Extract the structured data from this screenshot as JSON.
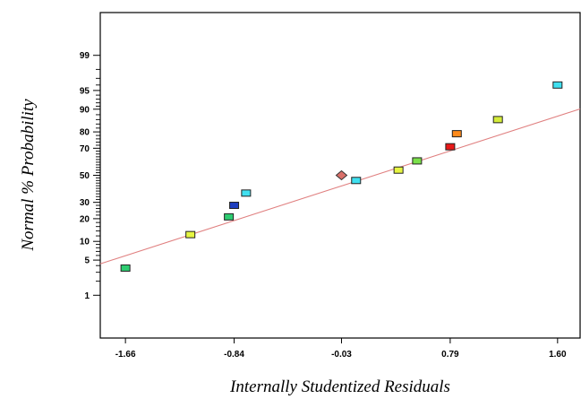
{
  "chart_data": {
    "type": "scatter",
    "title": "",
    "xlabel": "Internally Studentized Residuals",
    "ylabel": "Normal % Probability",
    "y_scale": "normal-probability",
    "grid": false,
    "legend": "none",
    "xlim": [
      -1.85,
      1.77
    ],
    "ylim": [
      0.08,
      99.92
    ],
    "x_ticks": [
      -1.66,
      -0.84,
      -0.03,
      0.79,
      1.6
    ],
    "x_tick_labels": [
      "-1.66",
      "-0.84",
      "-0.03",
      "0.79",
      "1.60"
    ],
    "y_ticks": [
      1,
      5,
      10,
      20,
      30,
      50,
      70,
      80,
      90,
      95,
      99
    ],
    "y_tick_labels": [
      "1",
      "5",
      "10",
      "20",
      "30",
      "50",
      "70",
      "80",
      "90",
      "95",
      "99"
    ],
    "reference_line": {
      "color": "#e08080",
      "points": [
        [
          -1.85,
          4.3
        ],
        [
          1.77,
          90.1
        ]
      ]
    },
    "points": [
      {
        "x": -1.66,
        "y": 3.6,
        "color": "#2ecc71",
        "shape": "square"
      },
      {
        "x": -1.17,
        "y": 12.5,
        "color": "#e6f542",
        "shape": "square"
      },
      {
        "x": -0.88,
        "y": 21.0,
        "color": "#2ecc71",
        "shape": "square"
      },
      {
        "x": -0.84,
        "y": 28.0,
        "color": "#1f3fbf",
        "shape": "square"
      },
      {
        "x": -0.75,
        "y": 36.5,
        "color": "#40e0f0",
        "shape": "square"
      },
      {
        "x": -0.03,
        "y": 50.0,
        "color": "#d9706a",
        "shape": "diamond"
      },
      {
        "x": 0.08,
        "y": 46.0,
        "color": "#40e0f0",
        "shape": "square"
      },
      {
        "x": 0.4,
        "y": 54.0,
        "color": "#e6f542",
        "shape": "square"
      },
      {
        "x": 0.54,
        "y": 61.0,
        "color": "#7be04a",
        "shape": "square"
      },
      {
        "x": 0.79,
        "y": 71.0,
        "color": "#e81818",
        "shape": "square"
      },
      {
        "x": 0.84,
        "y": 79.0,
        "color": "#ff8a1a",
        "shape": "square"
      },
      {
        "x": 1.15,
        "y": 86.0,
        "color": "#d4ec3a",
        "shape": "square"
      },
      {
        "x": 1.6,
        "y": 96.0,
        "color": "#40e0f0",
        "shape": "square"
      }
    ]
  }
}
